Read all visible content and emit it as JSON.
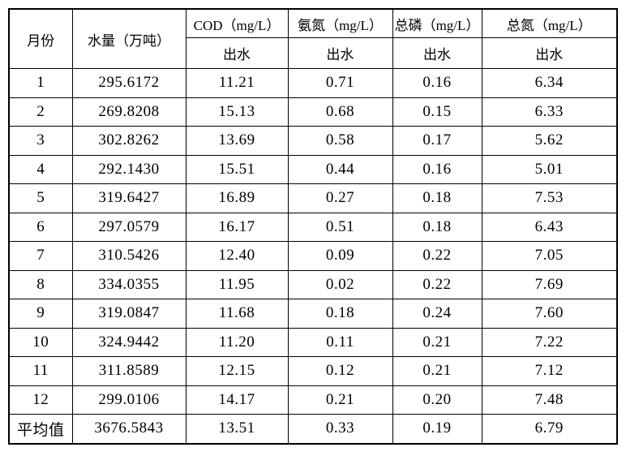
{
  "page": {
    "background_color": "#ffffff",
    "border_color": "#000000"
  },
  "table": {
    "columns": [
      {
        "label": "月份"
      },
      {
        "label": "水量（万吨）"
      },
      {
        "label": "COD（mg/L）",
        "sub": "出水"
      },
      {
        "label": "氨氮（mg/L）",
        "sub": "出水"
      },
      {
        "label": "总磷（mg/L）",
        "sub": "出水"
      },
      {
        "label": "总氮（mg/L）",
        "sub": "出水"
      }
    ],
    "rows": [
      [
        "1",
        "295.6172",
        "11.21",
        "0.71",
        "0.16",
        "6.34"
      ],
      [
        "2",
        "269.8208",
        "15.13",
        "0.68",
        "0.15",
        "6.33"
      ],
      [
        "3",
        "302.8262",
        "13.69",
        "0.58",
        "0.17",
        "5.62"
      ],
      [
        "4",
        "292.1430",
        "15.51",
        "0.44",
        "0.16",
        "5.01"
      ],
      [
        "5",
        "319.6427",
        "16.89",
        "0.27",
        "0.18",
        "7.53"
      ],
      [
        "6",
        "297.0579",
        "16.17",
        "0.51",
        "0.18",
        "6.43"
      ],
      [
        "7",
        "310.5426",
        "12.40",
        "0.09",
        "0.22",
        "7.05"
      ],
      [
        "8",
        "334.0355",
        "11.95",
        "0.02",
        "0.22",
        "7.69"
      ],
      [
        "9",
        "319.0847",
        "11.68",
        "0.18",
        "0.24",
        "7.60"
      ],
      [
        "10",
        "324.9442",
        "11.20",
        "0.11",
        "0.21",
        "7.22"
      ],
      [
        "11",
        "311.8589",
        "12.15",
        "0.12",
        "0.21",
        "7.12"
      ],
      [
        "12",
        "299.0106",
        "14.17",
        "0.21",
        "0.20",
        "7.48"
      ],
      [
        "平均值",
        "3676.5843",
        "13.51",
        "0.33",
        "0.19",
        "6.79"
      ]
    ],
    "average_row_label": "平均值"
  }
}
